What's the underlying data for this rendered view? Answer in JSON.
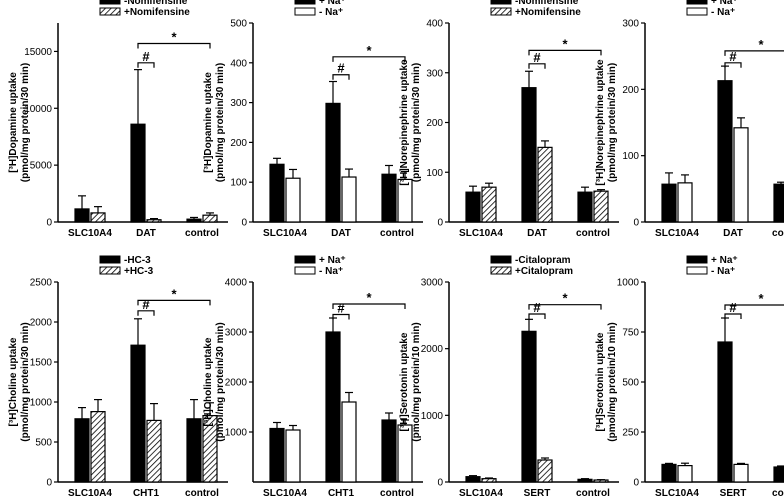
{
  "chart_data": [
    {
      "type": "bar",
      "ylabel": [
        "[³H]Dopamine uptake",
        "(pmol/mg protein/30 min)"
      ],
      "categories": [
        "SLC10A4",
        "DAT",
        "control"
      ],
      "ylim": [
        0,
        17500
      ],
      "yticks": [
        0,
        5000,
        10000,
        15000
      ],
      "legend_placement": "top",
      "series": [
        {
          "name": "-Nomifensine",
          "style": "solid",
          "values": [
            1150,
            8600,
            250
          ],
          "errors": [
            1150,
            4800,
            150
          ]
        },
        {
          "name": "+Nomifensine",
          "style": "hatch",
          "values": [
            800,
            200,
            600
          ],
          "errors": [
            550,
            100,
            200
          ]
        }
      ],
      "brackets": [
        {
          "label": "#",
          "from": [
            1,
            0
          ],
          "to": [
            1,
            1
          ],
          "y": 14000
        },
        {
          "label": "*",
          "from": [
            1,
            0
          ],
          "to": [
            2,
            1
          ],
          "y": 15700
        }
      ]
    },
    {
      "type": "bar",
      "ylabel": [
        "[³H]Dopamine uptake",
        "(pmol/mg protein/30 min)"
      ],
      "categories": [
        "SLC10A4",
        "DAT",
        "control"
      ],
      "ylim": [
        0,
        500
      ],
      "yticks": [
        0,
        100,
        200,
        300,
        400,
        500
      ],
      "legend_placement": "top",
      "series": [
        {
          "name": "+ Na⁺",
          "style": "solid",
          "values": [
            145,
            298,
            120
          ],
          "errors": [
            15,
            55,
            22
          ]
        },
        {
          "name": "- Na⁺",
          "style": "open",
          "values": [
            110,
            113,
            107
          ],
          "errors": [
            22,
            20,
            20
          ]
        }
      ],
      "brackets": [
        {
          "label": "#",
          "from": [
            1,
            0
          ],
          "to": [
            1,
            1
          ],
          "y": 370
        },
        {
          "label": "*",
          "from": [
            1,
            0
          ],
          "to": [
            2,
            1
          ],
          "y": 415
        }
      ]
    },
    {
      "type": "bar",
      "ylabel": [
        "[³H]Norepinephrine uptake",
        "(pmol/mg protein/30 min)"
      ],
      "categories": [
        "SLC10A4",
        "DAT",
        "control"
      ],
      "ylim": [
        0,
        400
      ],
      "yticks": [
        0,
        100,
        200,
        300,
        400
      ],
      "legend_placement": "top",
      "series": [
        {
          "name": "-Nomifensine",
          "style": "solid",
          "values": [
            60,
            270,
            60
          ],
          "errors": [
            12,
            33,
            10
          ]
        },
        {
          "name": "+Nomifensine",
          "style": "hatch",
          "values": [
            70,
            150,
            62
          ],
          "errors": [
            8,
            13,
            3
          ]
        }
      ],
      "brackets": [
        {
          "label": "#",
          "from": [
            1,
            0
          ],
          "to": [
            1,
            1
          ],
          "y": 318
        },
        {
          "label": "*",
          "from": [
            1,
            0
          ],
          "to": [
            2,
            1
          ],
          "y": 345
        }
      ]
    },
    {
      "type": "bar",
      "ylabel": [
        "[³H]Norepinephrine uptake",
        "(pmol/mg protein/30 min)"
      ],
      "categories": [
        "SLC10A4",
        "DAT",
        "control"
      ],
      "ylim": [
        0,
        300
      ],
      "yticks": [
        0,
        100,
        200,
        300
      ],
      "legend_placement": "top",
      "series": [
        {
          "name": "+ Na⁺",
          "style": "solid",
          "values": [
            57,
            213,
            57
          ],
          "errors": [
            17,
            22,
            3
          ]
        },
        {
          "name": "- Na⁺",
          "style": "open",
          "values": [
            59,
            142,
            57
          ],
          "errors": [
            12,
            15,
            3
          ]
        }
      ],
      "brackets": [
        {
          "label": "#",
          "from": [
            1,
            0
          ],
          "to": [
            1,
            1
          ],
          "y": 240
        },
        {
          "label": "*",
          "from": [
            1,
            0
          ],
          "to": [
            2,
            1
          ],
          "y": 258
        }
      ]
    },
    {
      "type": "bar",
      "ylabel": [
        "[³H]Choline uptake",
        "(pmol/mg protein/30 min)"
      ],
      "categories": [
        "SLC10A4",
        "CHT1",
        "control"
      ],
      "ylim": [
        0,
        2500
      ],
      "yticks": [
        0,
        500,
        1000,
        1500,
        2000,
        2500
      ],
      "legend_placement": "top",
      "series": [
        {
          "name": "-HC-3",
          "style": "solid",
          "values": [
            790,
            1710,
            790
          ],
          "errors": [
            140,
            330,
            240
          ]
        },
        {
          "name": "+HC-3",
          "style": "hatch",
          "values": [
            880,
            770,
            830
          ],
          "errors": [
            150,
            210,
            160
          ]
        }
      ],
      "brackets": [
        {
          "label": "#",
          "from": [
            1,
            0
          ],
          "to": [
            1,
            1
          ],
          "y": 2140
        },
        {
          "label": "*",
          "from": [
            1,
            0
          ],
          "to": [
            2,
            1
          ],
          "y": 2270
        }
      ]
    },
    {
      "type": "bar",
      "ylabel": [
        "[³H]Choline uptake",
        "(pmol/mg protein/30 min)"
      ],
      "categories": [
        "SLC10A4",
        "CHT1",
        "control"
      ],
      "ylim": [
        0,
        4000
      ],
      "yticks": [
        1000,
        2000,
        3000,
        4000
      ],
      "legend_placement": "top",
      "series": [
        {
          "name": "+ Na⁺",
          "style": "solid",
          "values": [
            1070,
            3000,
            1240
          ],
          "errors": [
            120,
            280,
            140
          ]
        },
        {
          "name": "- Na⁺",
          "style": "open",
          "values": [
            1040,
            1600,
            1140
          ],
          "errors": [
            90,
            190,
            100
          ]
        }
      ],
      "brackets": [
        {
          "label": "#",
          "from": [
            1,
            0
          ],
          "to": [
            1,
            1
          ],
          "y": 3350
        },
        {
          "label": "*",
          "from": [
            1,
            0
          ],
          "to": [
            2,
            1
          ],
          "y": 3560
        }
      ]
    },
    {
      "type": "bar",
      "ylabel": [
        "[³H]Serotonin uptake",
        "(pmol/mg protein/10 min)"
      ],
      "categories": [
        "SLC10A4",
        "SERT",
        "control"
      ],
      "ylim": [
        0,
        3000
      ],
      "yticks": [
        0,
        1000,
        2000,
        3000
      ],
      "legend_placement": "top",
      "series": [
        {
          "name": "-Citalopram",
          "style": "solid",
          "values": [
            80,
            2260,
            40
          ],
          "errors": [
            15,
            180,
            10
          ]
        },
        {
          "name": "+Citalopram",
          "style": "hatch",
          "values": [
            50,
            330,
            30
          ],
          "errors": [
            10,
            30,
            5
          ]
        }
      ],
      "brackets": [
        {
          "label": "#",
          "from": [
            1,
            0
          ],
          "to": [
            1,
            1
          ],
          "y": 2520
        },
        {
          "label": "*",
          "from": [
            1,
            0
          ],
          "to": [
            2,
            1
          ],
          "y": 2660
        }
      ]
    },
    {
      "type": "bar",
      "ylabel": [
        "[³H]Serotonin uptake",
        "(pmol/mg protein/10 min)"
      ],
      "categories": [
        "SLC10A4",
        "SERT",
        "control"
      ],
      "ylim": [
        0,
        1000
      ],
      "yticks": [
        0,
        250,
        500,
        750,
        1000
      ],
      "legend_placement": "top",
      "series": [
        {
          "name": "+ Na⁺",
          "style": "solid",
          "values": [
            88,
            700,
            75
          ],
          "errors": [
            5,
            120,
            5
          ]
        },
        {
          "name": "- Na⁺",
          "style": "open",
          "values": [
            82,
            88,
            57
          ],
          "errors": [
            12,
            5,
            5
          ]
        }
      ],
      "brackets": [
        {
          "label": "#",
          "from": [
            1,
            0
          ],
          "to": [
            1,
            1
          ],
          "y": 840
        },
        {
          "label": "*",
          "from": [
            1,
            0
          ],
          "to": [
            2,
            1
          ],
          "y": 885
        }
      ]
    }
  ]
}
